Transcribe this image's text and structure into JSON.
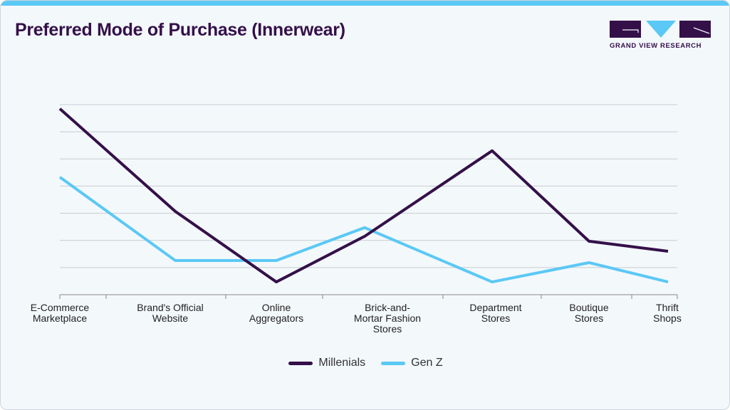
{
  "title": "Preferred Mode of Purchase (Innerwear)",
  "logo": {
    "text": "GRAND VIEW RESEARCH"
  },
  "colors": {
    "accent": "#5bc8f5",
    "brand": "#341049",
    "grid": "#c8ccd0"
  },
  "chart_data": {
    "type": "line",
    "title": "Preferred Mode of Purchase (Innerwear)",
    "xlabel": "",
    "ylabel": "",
    "ylim": [
      0,
      7
    ],
    "grid": true,
    "y_ticks_shown": false,
    "legend_position": "bottom",
    "categories": [
      [
        "E-Commerce",
        "Marketplace"
      ],
      [
        "Brand's Official",
        "Website"
      ],
      [
        "Online",
        "Aggregators"
      ],
      [
        "Brick-and-",
        "Mortar Fashion",
        "Stores"
      ],
      [
        "Department",
        "Stores"
      ],
      [
        "Boutique",
        "Stores"
      ],
      [
        "Thrift",
        "Shops"
      ]
    ],
    "series": [
      {
        "name": "Millenials",
        "color": "#341049",
        "values": [
          6.85,
          3.07,
          0.47,
          2.15,
          5.3,
          1.97,
          1.6
        ]
      },
      {
        "name": "Gen Z",
        "color": "#5bc8f5",
        "values": [
          4.33,
          1.26,
          1.26,
          2.47,
          0.47,
          1.18,
          0.47
        ]
      }
    ]
  }
}
